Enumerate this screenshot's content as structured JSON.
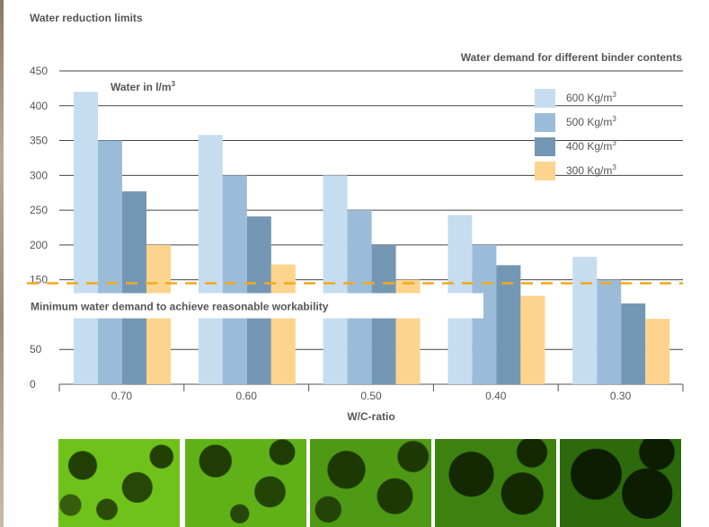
{
  "heading": "Water reduction limits",
  "chart_data": {
    "type": "bar",
    "title": "Water demand for different binder contents",
    "ylabel": "Water in l/m",
    "ylabel_sup": "3",
    "xlabel": "W/C-ratio",
    "ylim": [
      0,
      450
    ],
    "yticks": [
      0,
      50,
      150,
      200,
      250,
      300,
      350,
      400,
      450
    ],
    "categories": [
      "0.70",
      "0.60",
      "0.50",
      "0.40",
      "0.30"
    ],
    "series": [
      {
        "name": "600 Kg/m",
        "sup": "3",
        "color": "#c6dcef",
        "values": [
          420,
          358,
          300,
          243,
          183
        ]
      },
      {
        "name": "500 Kg/m",
        "sup": "3",
        "color": "#9bbcd9",
        "values": [
          350,
          300,
          250,
          200,
          150
        ]
      },
      {
        "name": "400 Kg/m",
        "sup": "3",
        "color": "#7497b4",
        "values": [
          277,
          241,
          200,
          171,
          116
        ]
      },
      {
        "name": "300 Kg/m",
        "sup": "3",
        "color": "#fdd48d",
        "values": [
          200,
          172,
          150,
          127,
          94
        ]
      }
    ],
    "threshold": {
      "value": 145,
      "label": "Minimum water demand to achieve reasonable workability",
      "color": "#f2a91a"
    },
    "legend_position": "top-right",
    "grid": true
  },
  "photos": [
    {
      "name": "photo-070"
    },
    {
      "name": "photo-060"
    },
    {
      "name": "photo-050"
    },
    {
      "name": "photo-040"
    },
    {
      "name": "photo-030"
    }
  ]
}
